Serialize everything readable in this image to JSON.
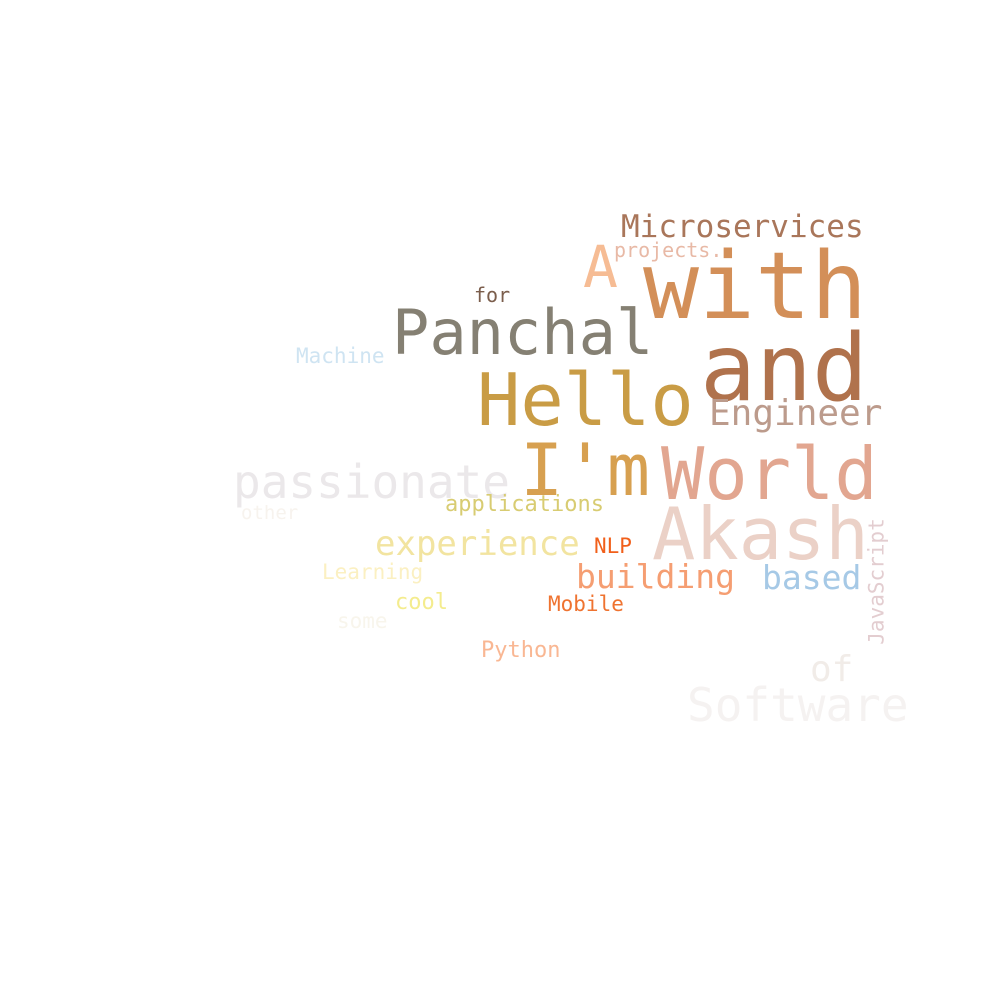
{
  "words": [
    {
      "text": "Microservices",
      "color": "#a9765a"
    },
    {
      "text": "projects.",
      "color": "#e8b9a6"
    },
    {
      "text": "with",
      "color": "#d38f58"
    },
    {
      "text": "A",
      "color": "#f6bc94"
    },
    {
      "text": "for",
      "color": "#7b5e4c"
    },
    {
      "text": "Panchal",
      "color": "#858073"
    },
    {
      "text": "and",
      "color": "#b0724c"
    },
    {
      "text": "Machine",
      "color": "#cfe4f2"
    },
    {
      "text": "Hello",
      "color": "#c99c45"
    },
    {
      "text": "Engineer",
      "color": "#bc9b8c"
    },
    {
      "text": "I'm",
      "color": "#d7a050"
    },
    {
      "text": "World",
      "color": "#e2a690"
    },
    {
      "text": "passionate",
      "color": "#ebe8ea"
    },
    {
      "text": "applications",
      "color": "#d8cc72"
    },
    {
      "text": "other",
      "color": "#f7f3ee"
    },
    {
      "text": "Akash",
      "color": "#ebd1c7"
    },
    {
      "text": "experience",
      "color": "#f2e4a0"
    },
    {
      "text": "NLP",
      "color": "#f15f1a"
    },
    {
      "text": "JavaScript",
      "color": "#e3cdd0"
    },
    {
      "text": "Learning",
      "color": "#fbf0c2"
    },
    {
      "text": "building",
      "color": "#f59e72"
    },
    {
      "text": "based",
      "color": "#a6c9e6"
    },
    {
      "text": "cool",
      "color": "#f4ec8e"
    },
    {
      "text": "Mobile",
      "color": "#ef7330"
    },
    {
      "text": "some",
      "color": "#f8f5ec"
    },
    {
      "text": "Python",
      "color": "#f9b793"
    },
    {
      "text": "of",
      "color": "#f1ece8"
    },
    {
      "text": "Software",
      "color": "#f5f2f1"
    }
  ]
}
